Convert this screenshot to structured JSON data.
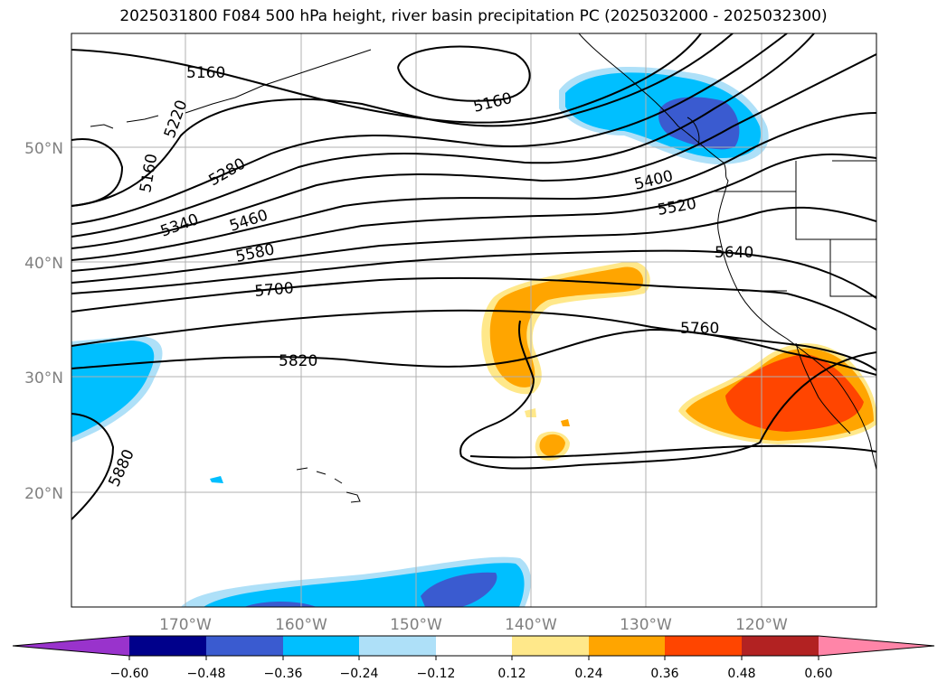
{
  "title": "2025031800 F084 500 hPa height, river basin precipitation PC (2025032000 - 2025032300)",
  "map": {
    "lat_labels": [
      "50°N",
      "40°N",
      "30°N",
      "20°N"
    ],
    "lon_labels": [
      "170°W",
      "160°W",
      "150°W",
      "140°W",
      "130°W",
      "120°W"
    ],
    "contour_labels": [
      "5160",
      "5160",
      "5160",
      "5220",
      "5280",
      "5340",
      "5400",
      "5460",
      "5520",
      "5580",
      "5640",
      "5700",
      "5760",
      "5820",
      "5880"
    ]
  },
  "colorbar": {
    "ticks": [
      "−0.60",
      "−0.48",
      "−0.36",
      "−0.24",
      "−0.12",
      "0.12",
      "0.24",
      "0.36",
      "0.48",
      "0.60"
    ],
    "colors": [
      "#9933cc",
      "#00008b",
      "#3a5bd0",
      "#00bfff",
      "#aee0f8",
      "#ffffff",
      "#ffe88a",
      "#ffa500",
      "#ff4500",
      "#b22222",
      "#ff85a8"
    ]
  }
}
